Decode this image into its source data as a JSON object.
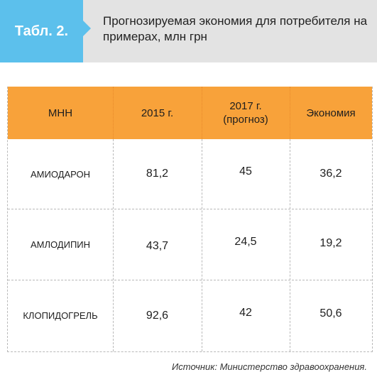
{
  "header": {
    "tag": "Табл. 2.",
    "title": "Прогнозируемая экономия для потребителя на примерах, млн грн"
  },
  "table": {
    "columns": [
      "МНН",
      "2015 г.",
      "2017 г. (прогноз)",
      "Экономия"
    ],
    "column_2017_line1": "2017 г.",
    "column_2017_line2": "(прогноз)",
    "rows": [
      {
        "name": "АМИОДАРОН",
        "y2015": "81,2",
        "y2017": "45",
        "saving": "36,2"
      },
      {
        "name": "АМЛОДИПИН",
        "y2015": "43,7",
        "y2017": "24,5",
        "saving": "19,2"
      },
      {
        "name": "КЛОПИДОГРЕЛЬ",
        "y2015": "92,6",
        "y2017": "42",
        "saving": "50,6"
      }
    ]
  },
  "source": "Источник: Министерство здравоохранения.",
  "colors": {
    "tag": "#5cc0ec",
    "header_band": "#e3e3e3",
    "table_header": "#f8a23a"
  }
}
